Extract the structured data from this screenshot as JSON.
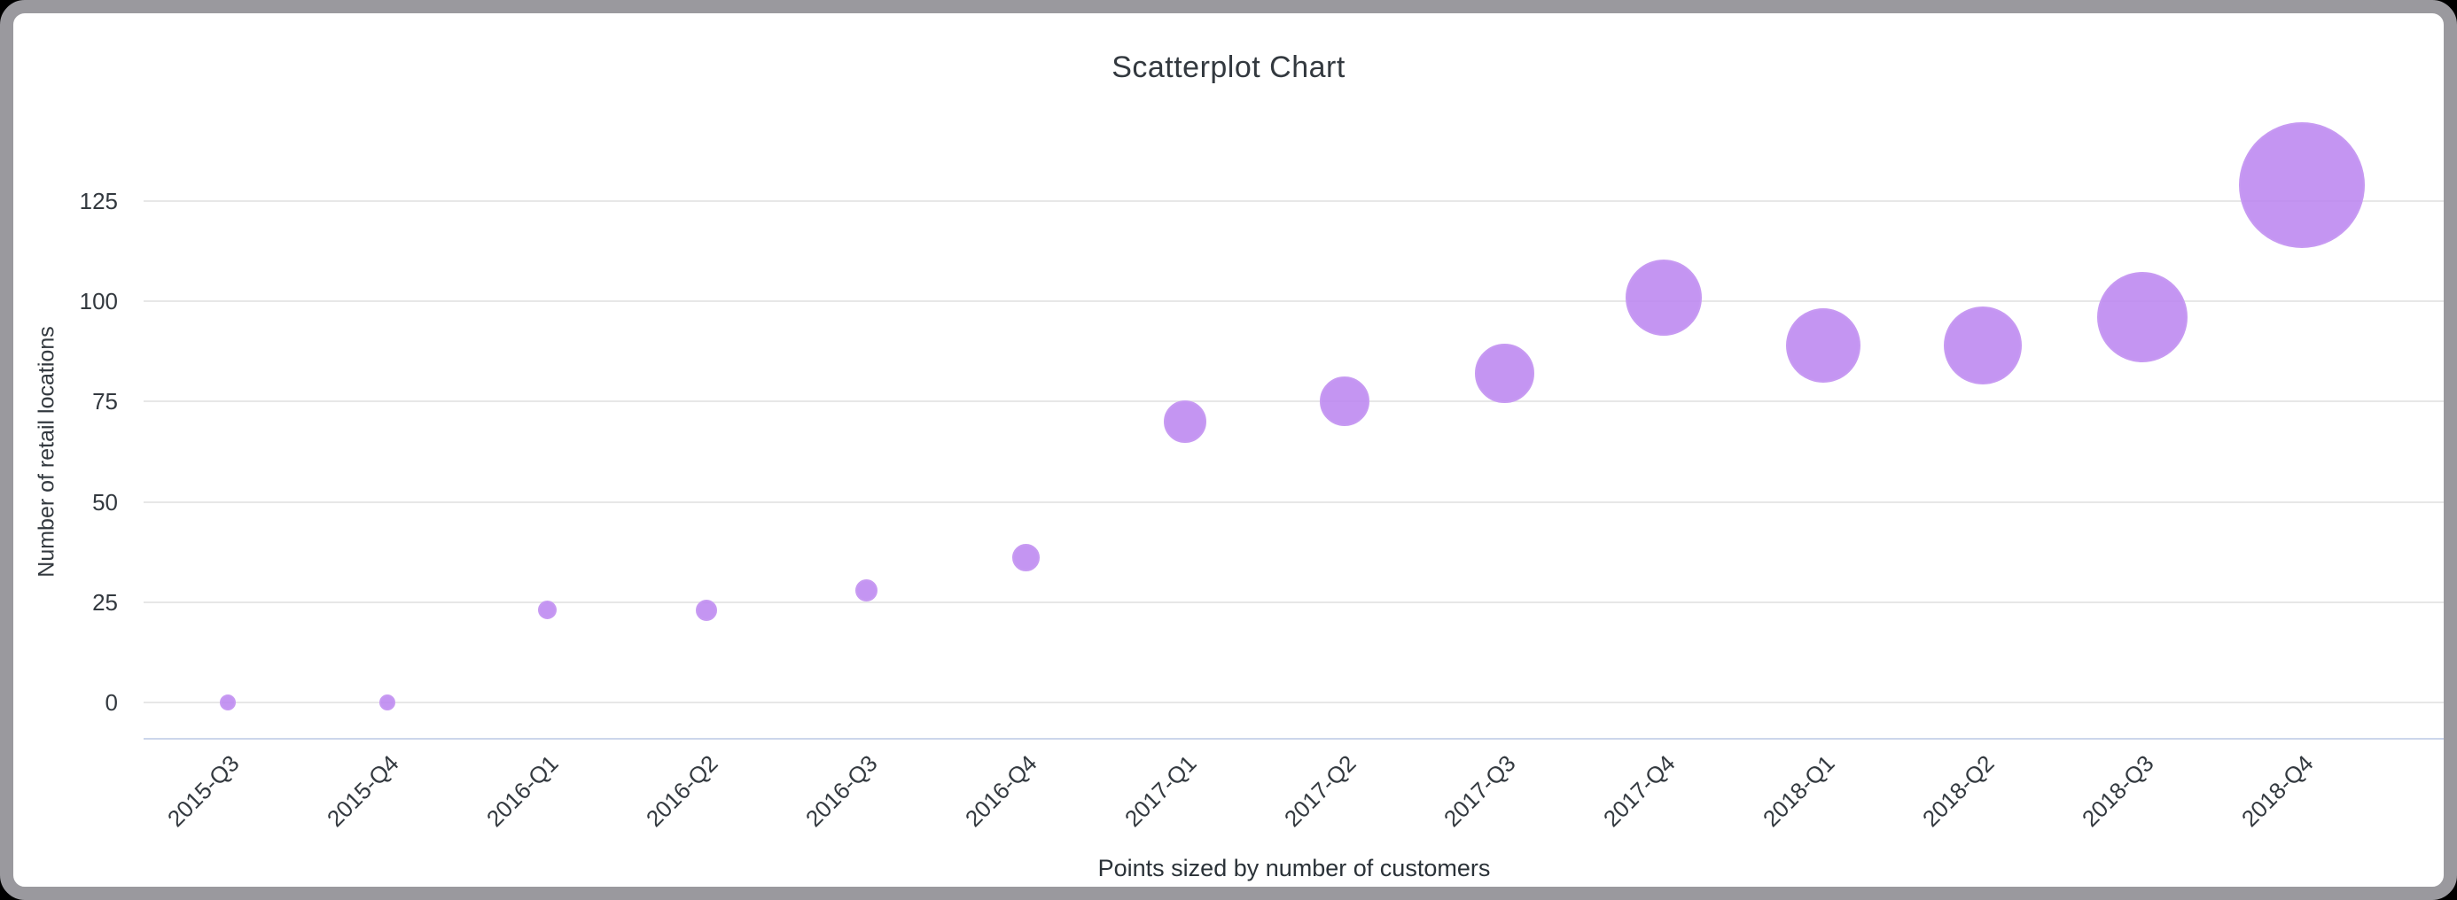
{
  "chart_data": {
    "type": "scatter",
    "title": "Scatterplot Chart",
    "xlabel": "",
    "ylabel": "Number of retail locations",
    "caption": "Points sized by number of customers",
    "size_encoding": "number of customers",
    "legend": "none",
    "grid": true,
    "yticks": [
      0,
      25,
      50,
      75,
      100,
      125
    ],
    "ylim": [
      0,
      140
    ],
    "categories": [
      "2015-Q3",
      "2015-Q4",
      "2016-Q1",
      "2016-Q2",
      "2016-Q3",
      "2016-Q4",
      "2017-Q1",
      "2017-Q2",
      "2017-Q3",
      "2017-Q4",
      "2018-Q1",
      "2018-Q2",
      "2018-Q3",
      "2018-Q4"
    ],
    "points": [
      {
        "category": "2015-Q3",
        "retail_locations": 0,
        "radius_px": 9
      },
      {
        "category": "2015-Q4",
        "retail_locations": 0,
        "radius_px": 9
      },
      {
        "category": "2016-Q1",
        "retail_locations": 23,
        "radius_px": 10.5
      },
      {
        "category": "2016-Q2",
        "retail_locations": 23,
        "radius_px": 12
      },
      {
        "category": "2016-Q3",
        "retail_locations": 28,
        "radius_px": 12.5
      },
      {
        "category": "2016-Q4",
        "retail_locations": 36,
        "radius_px": 15.5
      },
      {
        "category": "2017-Q1",
        "retail_locations": 70,
        "radius_px": 24
      },
      {
        "category": "2017-Q2",
        "retail_locations": 75,
        "radius_px": 28
      },
      {
        "category": "2017-Q3",
        "retail_locations": 82,
        "radius_px": 33.5
      },
      {
        "category": "2017-Q4",
        "retail_locations": 101,
        "radius_px": 43
      },
      {
        "category": "2018-Q1",
        "retail_locations": 89,
        "radius_px": 42
      },
      {
        "category": "2018-Q2",
        "retail_locations": 89,
        "radius_px": 44
      },
      {
        "category": "2018-Q3",
        "retail_locations": 96,
        "radius_px": 51
      },
      {
        "category": "2018-Q4",
        "retail_locations": 129,
        "radius_px": 71
      }
    ],
    "colors": {
      "point": "#c79af2",
      "point_fill_rgba": "rgba(186,130,240,0.85)",
      "gridline": "#e7e7e7",
      "axis_line": "#ccd6eb",
      "text": "#33393f",
      "frame_border": "#9a999e",
      "card_background": "#ffffff",
      "page_background": "#000000"
    }
  }
}
